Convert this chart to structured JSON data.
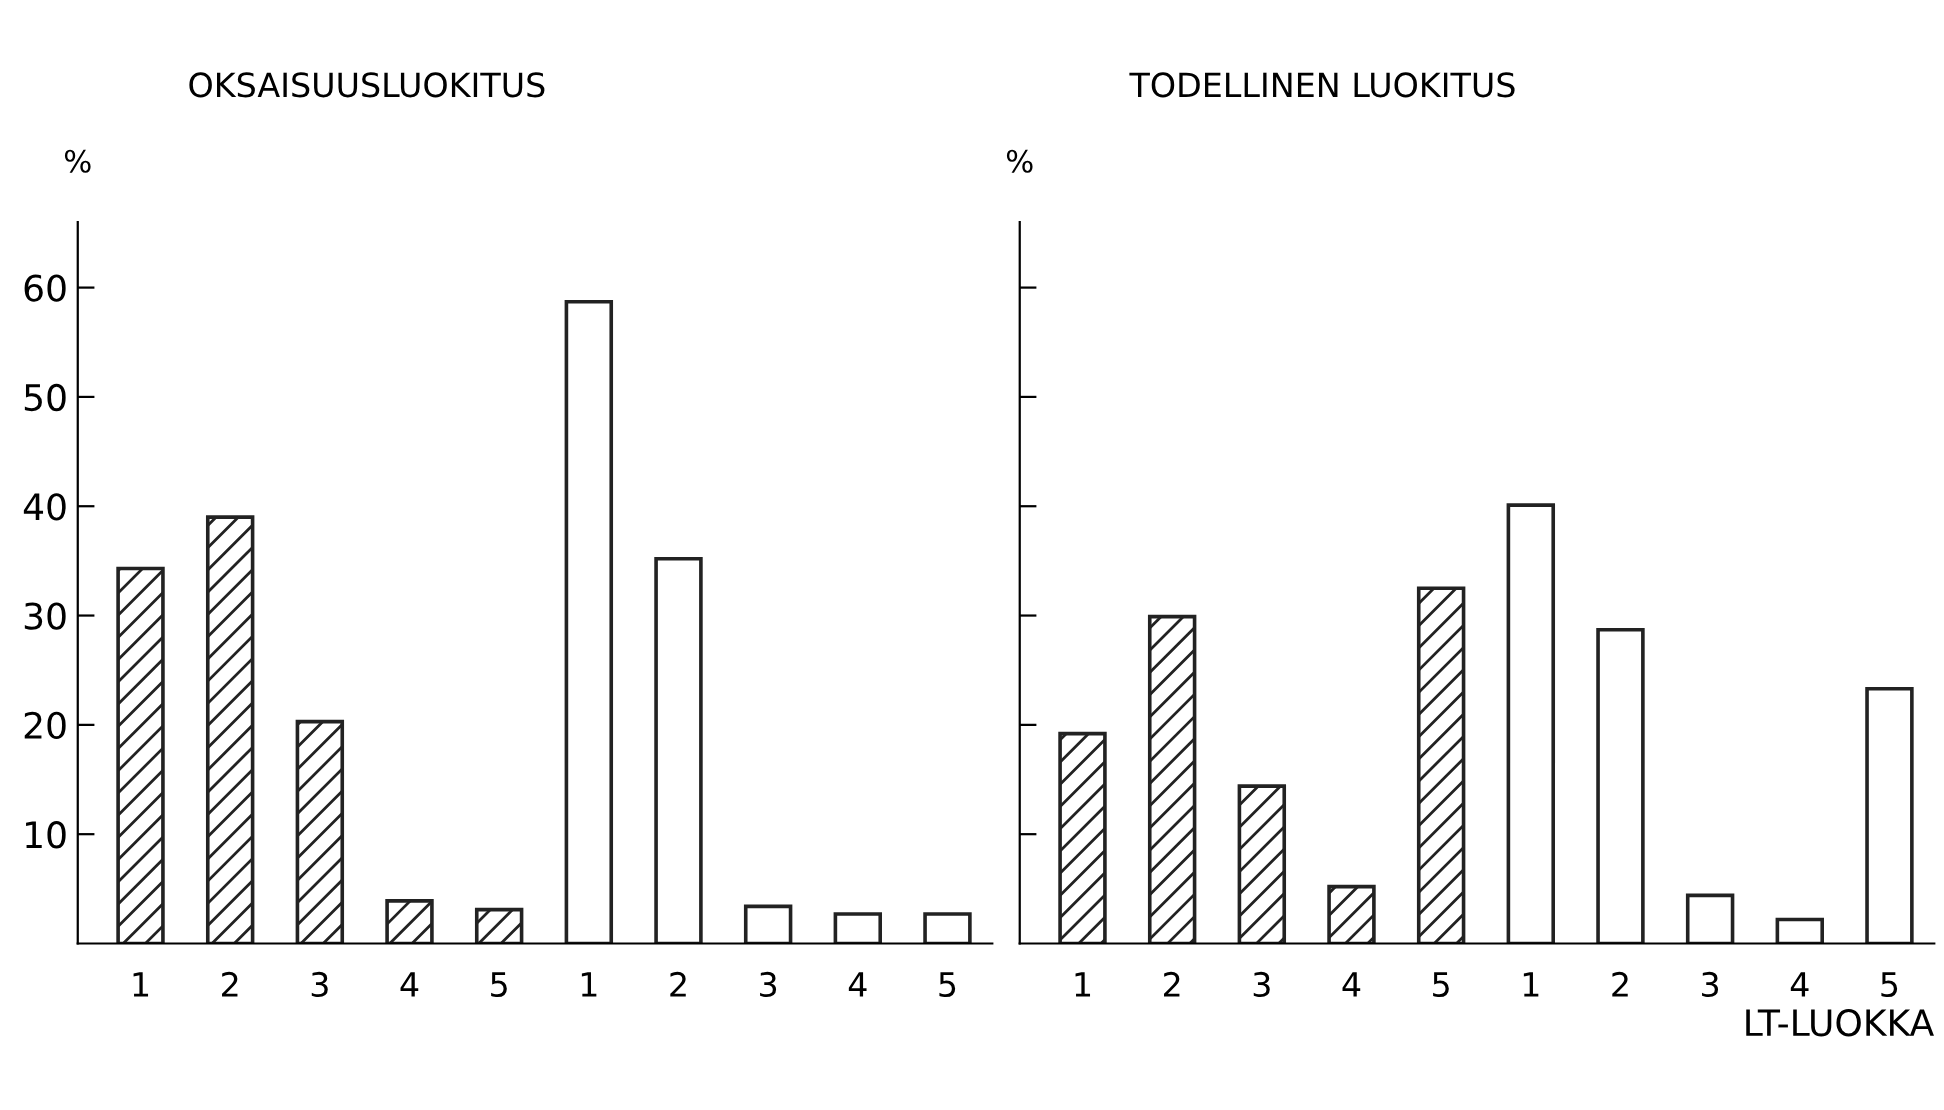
{
  "chart_data": [
    {
      "type": "bar",
      "title": "OKSAISUUSLUOKITUS",
      "ylabel": "%",
      "categories": [
        "1",
        "2",
        "3",
        "4",
        "5",
        "1",
        "2",
        "3",
        "4",
        "5"
      ],
      "series": [
        {
          "color": "#222222",
          "values": [
            34.3,
            39.0,
            20.3,
            3.9,
            3.1,
            null,
            null,
            null,
            null,
            null
          ]
        },
        {
          "color": "#ffffff",
          "values": [
            null,
            null,
            null,
            null,
            null,
            58.7,
            35.2,
            3.4,
            2.7,
            2.7
          ]
        }
      ],
      "ylim": [
        0,
        66
      ],
      "yticks": [
        10,
        20,
        30,
        40,
        50,
        60
      ],
      "grid": false,
      "legend": false
    },
    {
      "type": "bar",
      "title": "TODELLINEN LUOKITUS",
      "ylabel": "%",
      "xlabel": "LT-LUOKKA",
      "categories": [
        "1",
        "2",
        "3",
        "4",
        "5",
        "1",
        "2",
        "3",
        "4",
        "5"
      ],
      "series": [
        {
          "color": "#222222",
          "values": [
            19.2,
            29.9,
            14.4,
            5.2,
            32.5,
            null,
            null,
            null,
            null,
            null
          ]
        },
        {
          "color": "#ffffff",
          "values": [
            null,
            null,
            null,
            null,
            null,
            40.1,
            28.7,
            4.4,
            2.2,
            23.3
          ]
        }
      ],
      "ylim": [
        0,
        66
      ],
      "yticks": [
        10,
        20,
        30,
        40,
        50,
        60
      ],
      "tick_labels": "x",
      "grid": false,
      "legend": false
    }
  ]
}
